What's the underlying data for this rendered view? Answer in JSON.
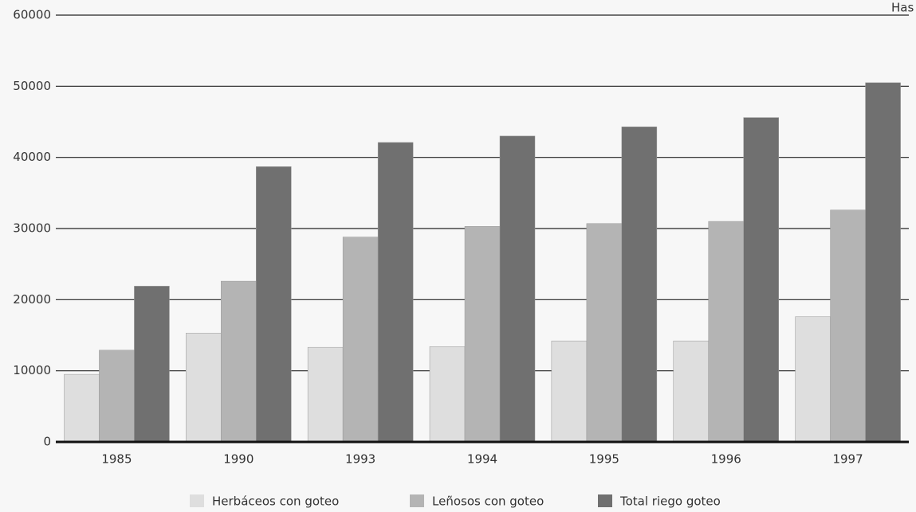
{
  "chart_data": {
    "type": "bar",
    "y_label": "Has",
    "categories": [
      "1985",
      "1990",
      "1993",
      "1994",
      "1995",
      "1996",
      "1997"
    ],
    "series": [
      {
        "name": "Herbáceos con goteo",
        "color": "#dedede",
        "values": [
          9500,
          15300,
          13300,
          13400,
          14200,
          14200,
          17600
        ]
      },
      {
        "name": "Leñosos con goteo",
        "color": "#b4b4b4",
        "values": [
          12900,
          22600,
          28800,
          30300,
          30700,
          31000,
          32600
        ]
      },
      {
        "name": "Total riego goteo",
        "color": "#707070",
        "values": [
          21900,
          38700,
          42100,
          43000,
          44300,
          45600,
          50500
        ]
      }
    ],
    "ylim": [
      0,
      60000
    ],
    "yticks": [
      0,
      10000,
      20000,
      30000,
      40000,
      50000,
      60000
    ],
    "grid": true,
    "legend": "bottom"
  }
}
